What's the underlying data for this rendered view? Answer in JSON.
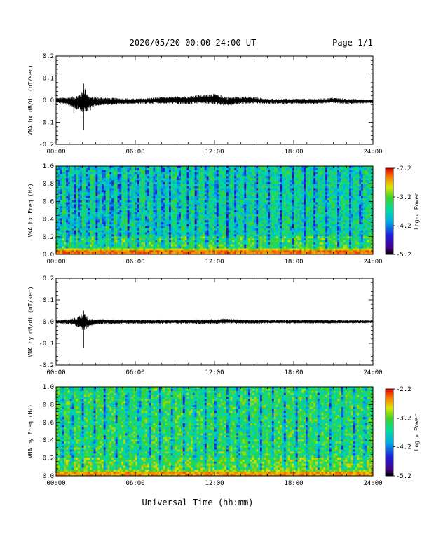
{
  "header": {
    "title": "2020/05/20  00:00-24:00 UT",
    "page": "Page 1/1"
  },
  "footer": {
    "xlabel": "Universal Time (hh:mm)"
  },
  "chart_data": [
    {
      "type": "line",
      "ylabel": "VNA bx dB/dt (nT/sec)",
      "xlim": [
        0,
        24
      ],
      "ylim": [
        -0.2,
        0.2
      ],
      "x_tick_labels": [
        "00:00",
        "06:00",
        "12:00",
        "18:00",
        "24:00"
      ],
      "y_ticks": [
        -0.2,
        -0.1,
        0.0,
        0.1,
        0.2
      ],
      "y_tick_labels": [
        "-0.2",
        "-0.1",
        "0.0",
        "0.1",
        "0.2"
      ],
      "series": [
        {
          "x": [
            0,
            1,
            1.5,
            2,
            2.1,
            2.2,
            2.5,
            3,
            6,
            8,
            10,
            11,
            12,
            13,
            14,
            15,
            16,
            18,
            20,
            21,
            22,
            24
          ],
          "baseline": [
            0,
            -0.005,
            -0.01,
            -0.01,
            -0.005,
            0,
            -0.01,
            -0.005,
            -0.005,
            0,
            0,
            0.005,
            0.005,
            -0.005,
            0,
            0,
            -0.005,
            -0.005,
            -0.005,
            0,
            -0.005,
            -0.005
          ],
          "amplitude": [
            0.01,
            0.02,
            0.03,
            0.05,
            0.07,
            0.06,
            0.03,
            0.02,
            0.012,
            0.015,
            0.02,
            0.02,
            0.025,
            0.02,
            0.018,
            0.015,
            0.012,
            0.012,
            0.012,
            0.012,
            0.012,
            0.008
          ],
          "spikes": [
            {
              "x": 2.08,
              "y": 0.075
            },
            {
              "x": 2.08,
              "y": -0.135
            },
            {
              "x": 1.35,
              "y": -0.055
            },
            {
              "x": 2.6,
              "y": -0.045
            }
          ]
        }
      ]
    },
    {
      "type": "heatmap",
      "ylabel": "VNA bx Freq (Hz)",
      "colorbar_label": "Log₁₀ Power",
      "xlim": [
        0,
        24
      ],
      "ylim": [
        0,
        1.0
      ],
      "zlim": [
        -5.2,
        -2.2
      ],
      "x_tick_labels": [
        "00:00",
        "06:00",
        "12:00",
        "18:00",
        "24:00"
      ],
      "y_ticks": [
        0.0,
        0.2,
        0.4,
        0.6,
        0.8,
        1.0
      ],
      "y_tick_labels": [
        "0.0",
        "0.2",
        "0.4",
        "0.6",
        "0.8",
        "1.0"
      ],
      "colorbar_ticks": [
        -2.2,
        -3.2,
        -4.2,
        -5.2
      ],
      "colorbar_tick_labels": [
        "-2.2",
        "-3.2",
        "-4.2",
        "-5.2"
      ],
      "background_level": -3.6,
      "low_freq_level": -2.5,
      "dark_stripe_hours": [
        0.3,
        0.9,
        1.4,
        1.8,
        2.4,
        3.1,
        3.6,
        4.2,
        4.8,
        5.5,
        6.2,
        6.9,
        7.5,
        8.1,
        8.6,
        9.3,
        10.0,
        10.6,
        11.4,
        12.2,
        13.0,
        13.6,
        14.3,
        15.2,
        16.1,
        17.0,
        17.9,
        18.8,
        19.6,
        20.5,
        21.4,
        22.3,
        23.1
      ]
    },
    {
      "type": "line",
      "ylabel": "VNA by dB/dt (nT/sec)",
      "xlim": [
        0,
        24
      ],
      "ylim": [
        -0.2,
        0.2
      ],
      "x_tick_labels": [
        "00:00",
        "06:00",
        "12:00",
        "18:00",
        "24:00"
      ],
      "y_ticks": [
        -0.2,
        -0.1,
        0.0,
        0.1,
        0.2
      ],
      "y_tick_labels": [
        "-0.2",
        "-0.1",
        "0.0",
        "0.1",
        "0.2"
      ],
      "series": [
        {
          "x": [
            0,
            1,
            1.5,
            2,
            2.1,
            2.2,
            2.5,
            3,
            6,
            8,
            10,
            12,
            13,
            14,
            15,
            16,
            18,
            20,
            22,
            24
          ],
          "baseline": [
            0,
            0,
            0,
            -0.005,
            0,
            0,
            -0.005,
            0,
            0,
            0,
            0,
            0,
            0.003,
            0,
            0,
            0,
            0,
            0,
            0,
            0
          ],
          "amplitude": [
            0.008,
            0.012,
            0.02,
            0.035,
            0.05,
            0.04,
            0.02,
            0.012,
            0.01,
            0.01,
            0.01,
            0.012,
            0.012,
            0.01,
            0.01,
            0.009,
            0.009,
            0.009,
            0.008,
            0.007
          ],
          "spikes": [
            {
              "x": 2.08,
              "y": 0.05
            },
            {
              "x": 2.08,
              "y": -0.12
            },
            {
              "x": 1.9,
              "y": 0.035
            }
          ]
        }
      ]
    },
    {
      "type": "heatmap",
      "ylabel": "VNA by Freq (Hz)",
      "colorbar_label": "Log₁₀ Power",
      "xlim": [
        0,
        24
      ],
      "ylim": [
        0,
        1.0
      ],
      "zlim": [
        -5.2,
        -2.2
      ],
      "x_tick_labels": [
        "00:00",
        "06:00",
        "12:00",
        "18:00",
        "24:00"
      ],
      "y_ticks": [
        0.0,
        0.2,
        0.4,
        0.6,
        0.8,
        1.0
      ],
      "y_tick_labels": [
        "0.0",
        "0.2",
        "0.4",
        "0.6",
        "0.8",
        "1.0"
      ],
      "colorbar_ticks": [
        -2.2,
        -3.2,
        -4.2,
        -5.2
      ],
      "colorbar_tick_labels": [
        "-2.2",
        "-3.2",
        "-4.2",
        "-5.2"
      ],
      "background_level": -3.4,
      "low_freq_level": -2.6,
      "dark_stripe_hours": [
        0.5,
        1.2,
        2.0,
        2.9,
        3.7,
        4.6,
        5.4,
        6.3,
        7.1,
        7.9,
        8.8,
        9.7,
        10.5,
        11.3,
        12.1,
        13.0,
        13.8,
        14.6,
        15.5,
        16.4,
        17.3,
        18.2,
        19.0,
        19.9,
        20.8,
        21.7,
        22.6,
        23.4
      ]
    }
  ]
}
